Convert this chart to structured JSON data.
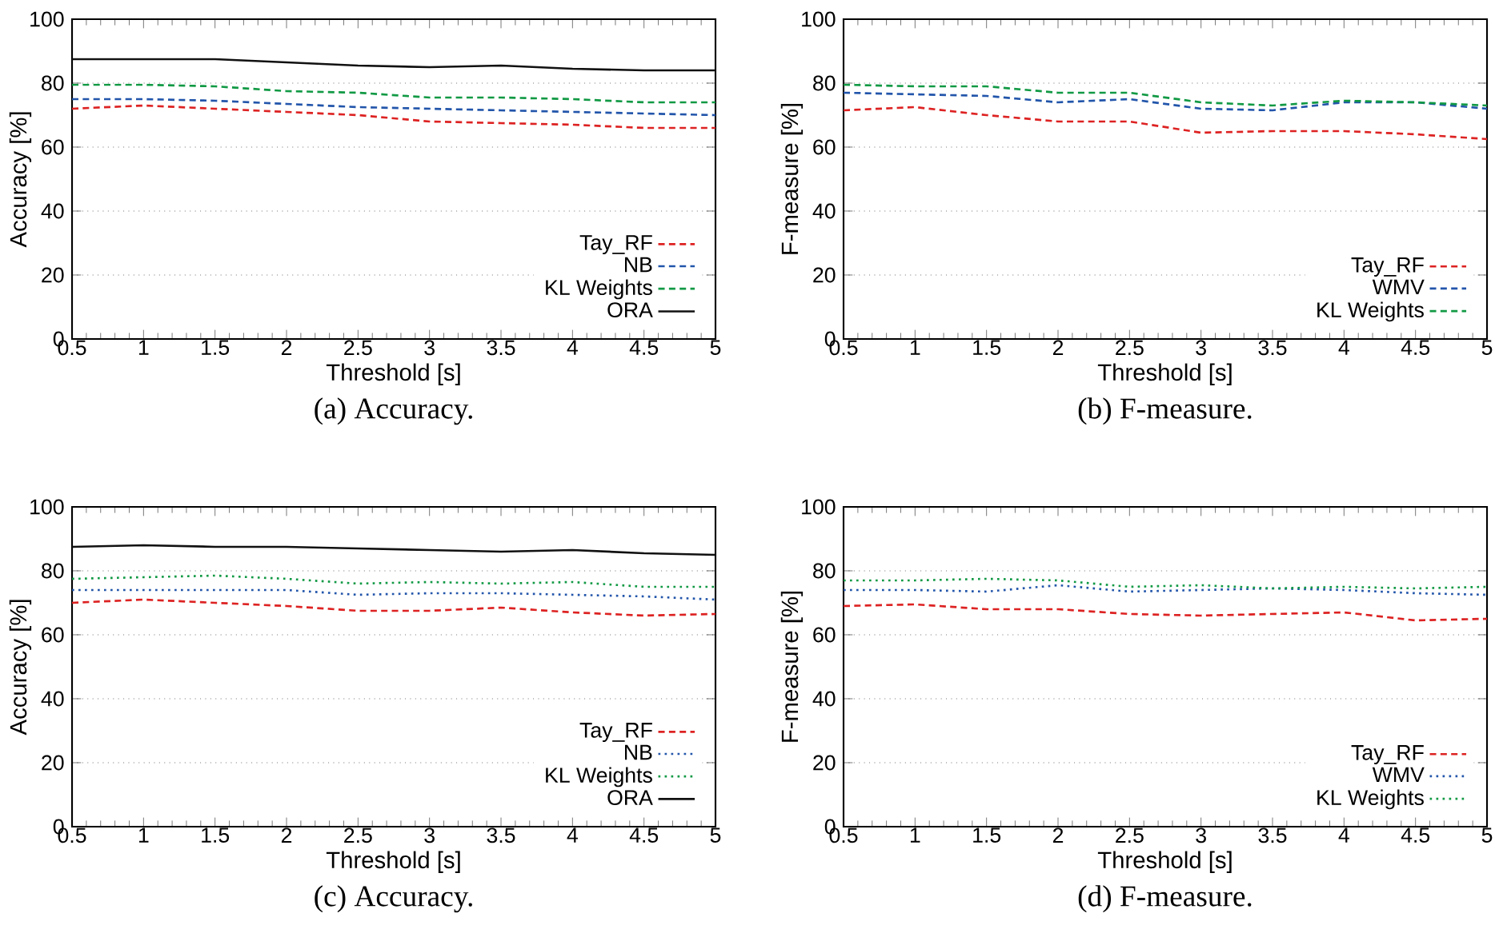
{
  "chart_data": [
    {
      "type": "line",
      "title": "(a) Accuracy.",
      "xlabel": "Threshold [s]",
      "ylabel": "Accuracy [%]",
      "x": [
        0.5,
        1,
        1.5,
        2,
        2.5,
        3,
        3.5,
        4,
        4.5,
        5
      ],
      "xlim": [
        0.5,
        5
      ],
      "ylim": [
        0,
        100
      ],
      "xticks": [
        0.5,
        1,
        1.5,
        2,
        2.5,
        3,
        3.5,
        4,
        4.5,
        5
      ],
      "yticks": [
        0,
        20,
        40,
        60,
        80,
        100
      ],
      "grid": "y",
      "legend": "bottom right",
      "series": [
        {
          "name": "Tay_RF",
          "color": "#dd2222",
          "line_style": "dashed",
          "values": [
            72,
            73,
            72,
            71,
            70,
            68,
            67.5,
            67,
            66,
            66
          ]
        },
        {
          "name": "NB",
          "color": "#2255aa",
          "line_style": "dashed",
          "values": [
            75,
            75,
            74.5,
            73.5,
            72.5,
            72,
            71.5,
            71,
            70.5,
            70
          ]
        },
        {
          "name": "KL Weights",
          "color": "#119944",
          "line_style": "dashed",
          "values": [
            79.5,
            79.5,
            79,
            77.5,
            77,
            75.5,
            75.5,
            75,
            74,
            74
          ]
        },
        {
          "name": "ORA",
          "color": "#111111",
          "line_style": "solid",
          "values": [
            87.5,
            87.5,
            87.5,
            86.5,
            85.5,
            85,
            85.5,
            84.5,
            84,
            84
          ]
        }
      ]
    },
    {
      "type": "line",
      "title": "(b) F-measure.",
      "xlabel": "Threshold [s]",
      "ylabel": "F-measure [%]",
      "x": [
        0.5,
        1,
        1.5,
        2,
        2.5,
        3,
        3.5,
        4,
        4.5,
        5
      ],
      "xlim": [
        0.5,
        5
      ],
      "ylim": [
        0,
        100
      ],
      "xticks": [
        0.5,
        1,
        1.5,
        2,
        2.5,
        3,
        3.5,
        4,
        4.5,
        5
      ],
      "yticks": [
        0,
        20,
        40,
        60,
        80,
        100
      ],
      "grid": "y",
      "legend": "bottom right",
      "series": [
        {
          "name": "Tay_RF",
          "color": "#dd2222",
          "line_style": "dashed",
          "values": [
            71.5,
            72.5,
            70,
            68,
            68,
            64.5,
            65,
            65,
            64,
            62.5
          ]
        },
        {
          "name": "WMV",
          "color": "#2255aa",
          "line_style": "dashed",
          "values": [
            77,
            76.5,
            76,
            74,
            75,
            72,
            71.5,
            74,
            74,
            72
          ]
        },
        {
          "name": "KL Weights",
          "color": "#119944",
          "line_style": "dashed",
          "values": [
            79.5,
            79,
            79,
            77,
            77,
            74,
            73,
            74.5,
            74,
            73
          ]
        }
      ]
    },
    {
      "type": "line",
      "title": "(c) Accuracy.",
      "xlabel": "Threshold [s]",
      "ylabel": "Accuracy [%]",
      "x": [
        0.5,
        1,
        1.5,
        2,
        2.5,
        3,
        3.5,
        4,
        4.5,
        5
      ],
      "xlim": [
        0.5,
        5
      ],
      "ylim": [
        0,
        100
      ],
      "xticks": [
        0.5,
        1,
        1.5,
        2,
        2.5,
        3,
        3.5,
        4,
        4.5,
        5
      ],
      "yticks": [
        0,
        20,
        40,
        60,
        80,
        100
      ],
      "grid": "y",
      "legend": "bottom right",
      "series": [
        {
          "name": "Tay_RF",
          "color": "#dd2222",
          "line_style": "dashed",
          "values": [
            70,
            71,
            70,
            69,
            67.5,
            67.5,
            68.5,
            67,
            66,
            66.5
          ]
        },
        {
          "name": "NB",
          "color": "#2255aa",
          "line_style": "dotted",
          "values": [
            74,
            74,
            74,
            74,
            72.5,
            73,
            73,
            72.5,
            72,
            71
          ]
        },
        {
          "name": "KL Weights",
          "color": "#119944",
          "line_style": "dotted",
          "values": [
            77.5,
            78,
            78.5,
            77.5,
            76,
            76.5,
            76,
            76.5,
            75,
            75
          ]
        },
        {
          "name": "ORA",
          "color": "#111111",
          "line_style": "solid",
          "values": [
            87.5,
            88,
            87.5,
            87.5,
            87,
            86.5,
            86,
            86.5,
            85.5,
            85
          ]
        }
      ]
    },
    {
      "type": "line",
      "title": "(d) F-measure.",
      "xlabel": "Threshold [s]",
      "ylabel": "F-measure [%]",
      "x": [
        0.5,
        1,
        1.5,
        2,
        2.5,
        3,
        3.5,
        4,
        4.5,
        5
      ],
      "xlim": [
        0.5,
        5
      ],
      "ylim": [
        0,
        100
      ],
      "xticks": [
        0.5,
        1,
        1.5,
        2,
        2.5,
        3,
        3.5,
        4,
        4.5,
        5
      ],
      "yticks": [
        0,
        20,
        40,
        60,
        80,
        100
      ],
      "grid": "y",
      "legend": "bottom right",
      "series": [
        {
          "name": "Tay_RF",
          "color": "#dd2222",
          "line_style": "dashed",
          "values": [
            69,
            69.5,
            68,
            68,
            66.5,
            66,
            66.5,
            67,
            64.5,
            65
          ]
        },
        {
          "name": "WMV",
          "color": "#2255aa",
          "line_style": "dotted",
          "values": [
            74,
            74,
            73.5,
            75.5,
            73.5,
            74,
            74.5,
            74,
            73,
            72.5
          ]
        },
        {
          "name": "KL Weights",
          "color": "#119944",
          "line_style": "dotted",
          "values": [
            77,
            77,
            77.5,
            77,
            75,
            75.5,
            74.5,
            75,
            74.5,
            75
          ]
        }
      ]
    }
  ]
}
